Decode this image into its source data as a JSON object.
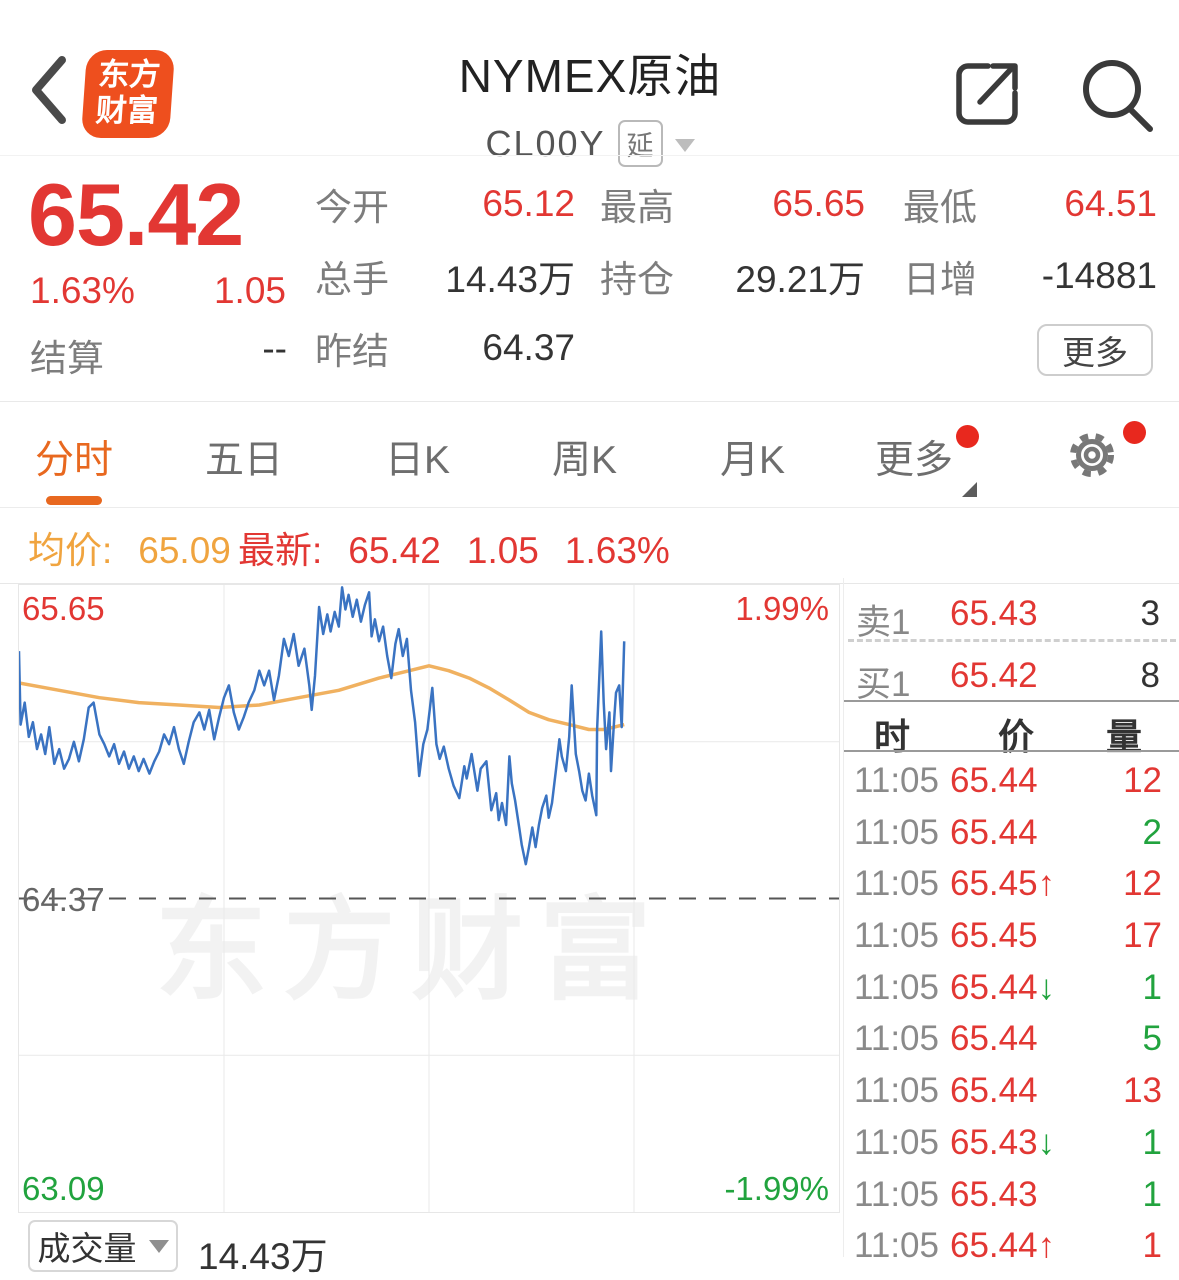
{
  "colors": {
    "red": "#e23733",
    "green": "#21a33e",
    "orange": "#e8681f",
    "avg_orange": "#f0a43f",
    "logo_orange": "#ee4f1e",
    "line_blue": "#3a73c2",
    "line_orange": "#f0b160"
  },
  "header": {
    "title": "NYMEX原油",
    "code": "CL00Y",
    "badge": "延",
    "logo_line1": "东方",
    "logo_line2": "财富"
  },
  "quote": {
    "price": "65.42",
    "change_pct": "1.63%",
    "change": "1.05",
    "settle_label": "结算",
    "settle_value": "--",
    "stats": [
      {
        "label": "今开",
        "value": "65.12"
      },
      {
        "label": "最高",
        "value": "65.65"
      },
      {
        "label": "最低",
        "value": "64.51"
      },
      {
        "label": "总手",
        "value": "14.43万"
      },
      {
        "label": "持仓",
        "value": "29.21万"
      },
      {
        "label": "日增",
        "value": "-14881"
      },
      {
        "label": "昨结",
        "value": "64.37"
      }
    ],
    "more_label": "更多"
  },
  "tabs": [
    {
      "label": "分时",
      "active": true
    },
    {
      "label": "五日"
    },
    {
      "label": "日K"
    },
    {
      "label": "周K"
    },
    {
      "label": "月K"
    },
    {
      "label": "更多",
      "caret": true,
      "dot": true
    },
    {
      "label": "",
      "icon": "gear",
      "dot": true
    }
  ],
  "info_line": {
    "avg_label": "均价:",
    "avg_value": "65.09",
    "last_label": "最新:",
    "last_value": "65.42",
    "last_change": "1.05",
    "last_pct": "1.63%"
  },
  "chart_data": {
    "type": "line",
    "title": "NYMEX原油 分时走势",
    "ylim": [
      63.09,
      65.65
    ],
    "prev_close": 64.37,
    "avg_price": 65.09,
    "last_price": 65.42,
    "upper_label": "65.65",
    "upper_pct": "1.99%",
    "prev_label": "64.37",
    "lower_label": "63.09",
    "lower_pct": "-1.99%",
    "watermark": "东方财富",
    "grid": {
      "v_fracs": [
        0.25,
        0.5,
        0.75
      ],
      "h_fracs": [
        0.25,
        0.75
      ],
      "prev_frac": 0.5
    },
    "x_end_frac": 0.738,
    "series": [
      {
        "name": "price",
        "color": "#3a73c2",
        "points": [
          [
            0.0,
            65.38
          ],
          [
            0.002,
            65.08
          ],
          [
            0.007,
            65.17
          ],
          [
            0.012,
            65.03
          ],
          [
            0.017,
            65.09
          ],
          [
            0.022,
            64.98
          ],
          [
            0.027,
            65.04
          ],
          [
            0.032,
            64.96
          ],
          [
            0.037,
            65.07
          ],
          [
            0.043,
            64.92
          ],
          [
            0.049,
            64.98
          ],
          [
            0.055,
            64.9
          ],
          [
            0.061,
            64.94
          ],
          [
            0.067,
            65.01
          ],
          [
            0.073,
            64.93
          ],
          [
            0.079,
            65.02
          ],
          [
            0.085,
            65.15
          ],
          [
            0.091,
            65.17
          ],
          [
            0.098,
            65.04
          ],
          [
            0.104,
            65.0
          ],
          [
            0.11,
            64.95
          ],
          [
            0.116,
            65.0
          ],
          [
            0.122,
            64.92
          ],
          [
            0.128,
            64.97
          ],
          [
            0.134,
            64.9
          ],
          [
            0.14,
            64.95
          ],
          [
            0.146,
            64.89
          ],
          [
            0.152,
            64.94
          ],
          [
            0.159,
            64.88
          ],
          [
            0.165,
            64.93
          ],
          [
            0.171,
            64.97
          ],
          [
            0.177,
            65.04
          ],
          [
            0.183,
            65.0
          ],
          [
            0.189,
            65.07
          ],
          [
            0.195,
            64.98
          ],
          [
            0.201,
            64.92
          ],
          [
            0.207,
            65.01
          ],
          [
            0.213,
            65.09
          ],
          [
            0.22,
            65.13
          ],
          [
            0.226,
            65.06
          ],
          [
            0.232,
            65.14
          ],
          [
            0.238,
            65.02
          ],
          [
            0.244,
            65.11
          ],
          [
            0.25,
            65.19
          ],
          [
            0.256,
            65.24
          ],
          [
            0.262,
            65.13
          ],
          [
            0.268,
            65.06
          ],
          [
            0.274,
            65.11
          ],
          [
            0.28,
            65.17
          ],
          [
            0.287,
            65.22
          ],
          [
            0.293,
            65.3
          ],
          [
            0.299,
            65.24
          ],
          [
            0.305,
            65.3
          ],
          [
            0.311,
            65.18
          ],
          [
            0.317,
            65.28
          ],
          [
            0.323,
            65.43
          ],
          [
            0.329,
            65.36
          ],
          [
            0.335,
            65.45
          ],
          [
            0.341,
            65.32
          ],
          [
            0.348,
            65.39
          ],
          [
            0.354,
            65.24
          ],
          [
            0.357,
            65.14
          ],
          [
            0.361,
            65.28
          ],
          [
            0.366,
            65.56
          ],
          [
            0.371,
            65.45
          ],
          [
            0.376,
            65.53
          ],
          [
            0.38,
            65.46
          ],
          [
            0.385,
            65.54
          ],
          [
            0.39,
            65.48
          ],
          [
            0.394,
            65.64
          ],
          [
            0.398,
            65.55
          ],
          [
            0.402,
            65.61
          ],
          [
            0.407,
            65.52
          ],
          [
            0.412,
            65.59
          ],
          [
            0.417,
            65.5
          ],
          [
            0.422,
            65.57
          ],
          [
            0.427,
            65.62
          ],
          [
            0.43,
            65.44
          ],
          [
            0.434,
            65.51
          ],
          [
            0.439,
            65.42
          ],
          [
            0.444,
            65.48
          ],
          [
            0.449,
            65.36
          ],
          [
            0.454,
            65.27
          ],
          [
            0.459,
            65.41
          ],
          [
            0.463,
            65.47
          ],
          [
            0.468,
            65.36
          ],
          [
            0.473,
            65.43
          ],
          [
            0.478,
            65.22
          ],
          [
            0.483,
            65.09
          ],
          [
            0.488,
            64.87
          ],
          [
            0.493,
            65.0
          ],
          [
            0.498,
            65.06
          ],
          [
            0.504,
            65.23
          ],
          [
            0.509,
            65.0
          ],
          [
            0.513,
            64.94
          ],
          [
            0.518,
            64.99
          ],
          [
            0.524,
            64.9
          ],
          [
            0.53,
            64.83
          ],
          [
            0.537,
            64.78
          ],
          [
            0.543,
            64.91
          ],
          [
            0.546,
            64.86
          ],
          [
            0.552,
            64.96
          ],
          [
            0.559,
            64.81
          ],
          [
            0.563,
            64.9
          ],
          [
            0.57,
            64.93
          ],
          [
            0.576,
            64.73
          ],
          [
            0.582,
            64.8
          ],
          [
            0.585,
            64.69
          ],
          [
            0.589,
            64.76
          ],
          [
            0.594,
            64.67
          ],
          [
            0.598,
            64.95
          ],
          [
            0.601,
            64.84
          ],
          [
            0.605,
            64.77
          ],
          [
            0.61,
            64.66
          ],
          [
            0.613,
            64.59
          ],
          [
            0.618,
            64.51
          ],
          [
            0.622,
            64.58
          ],
          [
            0.626,
            64.66
          ],
          [
            0.63,
            64.58
          ],
          [
            0.634,
            64.67
          ],
          [
            0.638,
            64.74
          ],
          [
            0.643,
            64.79
          ],
          [
            0.646,
            64.7
          ],
          [
            0.65,
            64.76
          ],
          [
            0.655,
            64.9
          ],
          [
            0.659,
            65.02
          ],
          [
            0.662,
            64.95
          ],
          [
            0.667,
            64.89
          ],
          [
            0.671,
            65.03
          ],
          [
            0.674,
            65.24
          ],
          [
            0.679,
            64.96
          ],
          [
            0.683,
            64.89
          ],
          [
            0.687,
            64.81
          ],
          [
            0.691,
            64.77
          ],
          [
            0.695,
            64.88
          ],
          [
            0.699,
            64.79
          ],
          [
            0.704,
            64.71
          ],
          [
            0.705,
            65.06
          ],
          [
            0.71,
            65.46
          ],
          [
            0.713,
            65.17
          ],
          [
            0.716,
            64.98
          ],
          [
            0.72,
            65.13
          ],
          [
            0.722,
            64.89
          ],
          [
            0.726,
            65.11
          ],
          [
            0.728,
            65.21
          ],
          [
            0.732,
            65.24
          ],
          [
            0.735,
            65.07
          ],
          [
            0.738,
            65.42
          ]
        ]
      },
      {
        "name": "avg",
        "color": "#f0b160",
        "points": [
          [
            0.0,
            65.25
          ],
          [
            0.049,
            65.22
          ],
          [
            0.098,
            65.19
          ],
          [
            0.146,
            65.17
          ],
          [
            0.195,
            65.16
          ],
          [
            0.244,
            65.15
          ],
          [
            0.293,
            65.16
          ],
          [
            0.341,
            65.19
          ],
          [
            0.39,
            65.22
          ],
          [
            0.439,
            65.27
          ],
          [
            0.476,
            65.3
          ],
          [
            0.5,
            65.32
          ],
          [
            0.524,
            65.3
          ],
          [
            0.549,
            65.27
          ],
          [
            0.573,
            65.23
          ],
          [
            0.598,
            65.18
          ],
          [
            0.622,
            65.13
          ],
          [
            0.646,
            65.1
          ],
          [
            0.671,
            65.08
          ],
          [
            0.695,
            65.06
          ],
          [
            0.713,
            65.06
          ],
          [
            0.726,
            65.07
          ],
          [
            0.738,
            65.08
          ]
        ]
      }
    ]
  },
  "volume_bar": {
    "label": "成交量",
    "value": "14.43万"
  },
  "order_book": {
    "sell": {
      "label": "卖1",
      "price": "65.43",
      "qty": "3"
    },
    "buy": {
      "label": "买1",
      "price": "65.42",
      "qty": "8"
    }
  },
  "trades": {
    "headers": {
      "time": "时",
      "price": "价",
      "qty": "量"
    },
    "rows": [
      {
        "time": "11:05",
        "price": "65.44",
        "dir": "",
        "qty": "12",
        "qty_color": "red"
      },
      {
        "time": "11:05",
        "price": "65.44",
        "dir": "",
        "qty": "2",
        "qty_color": "green"
      },
      {
        "time": "11:05",
        "price": "65.45",
        "dir": "up",
        "qty": "12",
        "qty_color": "red"
      },
      {
        "time": "11:05",
        "price": "65.45",
        "dir": "",
        "qty": "17",
        "qty_color": "red"
      },
      {
        "time": "11:05",
        "price": "65.44",
        "dir": "down",
        "qty": "1",
        "qty_color": "green"
      },
      {
        "time": "11:05",
        "price": "65.44",
        "dir": "",
        "qty": "5",
        "qty_color": "green"
      },
      {
        "time": "11:05",
        "price": "65.44",
        "dir": "",
        "qty": "13",
        "qty_color": "red"
      },
      {
        "time": "11:05",
        "price": "65.43",
        "dir": "down",
        "qty": "1",
        "qty_color": "green"
      },
      {
        "time": "11:05",
        "price": "65.43",
        "dir": "",
        "qty": "1",
        "qty_color": "green"
      },
      {
        "time": "11:05",
        "price": "65.44",
        "dir": "up",
        "qty": "1",
        "qty_color": "red"
      }
    ]
  }
}
